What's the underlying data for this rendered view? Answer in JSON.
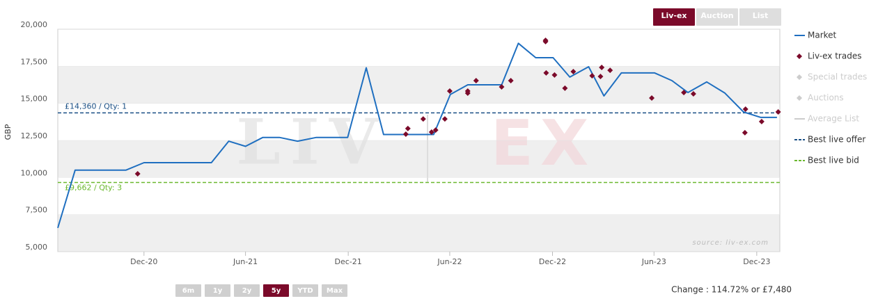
{
  "chart_data": {
    "type": "line",
    "y_label": "GBP",
    "xlim": [
      2020.495,
      2024.03
    ],
    "xticks": [
      {
        "value": 2020.917,
        "label": "Dec-20"
      },
      {
        "value": 2021.414,
        "label": "Jun-21"
      },
      {
        "value": 2021.917,
        "label": "Dec-21"
      },
      {
        "value": 2022.414,
        "label": "Jun-22"
      },
      {
        "value": 2022.917,
        "label": "Dec-22"
      },
      {
        "value": 2023.414,
        "label": "Jun-23"
      },
      {
        "value": 2023.917,
        "label": "Dec-23"
      }
    ],
    "ylim": [
      5000,
      20000
    ],
    "yticks": [
      {
        "value": 5000,
        "label": "5,000"
      },
      {
        "value": 7500,
        "label": "7,500"
      },
      {
        "value": 10000,
        "label": "10,000"
      },
      {
        "value": 12500,
        "label": "12,500"
      },
      {
        "value": 15000,
        "label": "15,000"
      },
      {
        "value": 17500,
        "label": "17,500"
      },
      {
        "value": 20000,
        "label": "20,000"
      }
    ],
    "series": [
      {
        "name": "Market",
        "type": "line",
        "color": "#1f6fc0",
        "x": [
          2020.495,
          2020.58,
          2020.829,
          2020.917,
          2021.247,
          2021.332,
          2021.414,
          2021.499,
          2021.58,
          2021.669,
          2021.761,
          2021.914,
          2022.005,
          2022.09,
          2022.335,
          2022.417,
          2022.502,
          2022.668,
          2022.75,
          2022.835,
          2022.92,
          2023.002,
          2023.094,
          2023.169,
          2023.254,
          2023.417,
          2023.502,
          2023.58,
          2023.672,
          2023.761,
          2023.852,
          2023.937,
          2024.016
        ],
        "values": [
          6600,
          10500,
          10500,
          11000,
          11000,
          12450,
          12100,
          12700,
          12700,
          12450,
          12700,
          12700,
          17400,
          12900,
          12900,
          15600,
          16250,
          16250,
          19050,
          18080,
          18080,
          16770,
          17470,
          15500,
          17050,
          17050,
          16530,
          15730,
          16440,
          15690,
          14420,
          14050,
          14050
        ]
      },
      {
        "name": "Liv-ex trades",
        "type": "scatter",
        "color": "#7b0a2a",
        "x": [
          2020.886,
          2022.199,
          2022.209,
          2022.284,
          2022.325,
          2022.345,
          2022.39,
          2022.414,
          2022.502,
          2022.502,
          2022.543,
          2022.668,
          2022.713,
          2022.883,
          2022.883,
          2022.886,
          2022.927,
          2022.978,
          2023.019,
          2023.111,
          2023.152,
          2023.158,
          2023.199,
          2023.403,
          2023.56,
          2023.607,
          2023.862,
          2023.859,
          2023.941,
          2024.022
        ],
        "values": [
          10250,
          12920,
          13300,
          13950,
          13060,
          13200,
          13950,
          15830,
          15830,
          15690,
          16530,
          16110,
          16530,
          19250,
          19160,
          17050,
          16910,
          16020,
          17140,
          16860,
          16810,
          17420,
          17230,
          15360,
          15730,
          15640,
          14610,
          13020,
          13770,
          14420
        ]
      },
      {
        "name": "Special trades",
        "type": "scatter",
        "color": "#cccccc",
        "x": [],
        "values": []
      },
      {
        "name": "Auctions",
        "type": "scatter",
        "color": "#cccccc",
        "x": [],
        "values": []
      },
      {
        "name": "Average List",
        "type": "line",
        "color": "#cccccc",
        "x": [],
        "values": []
      }
    ],
    "reference_lines": [
      {
        "name": "Best live offer",
        "color": "#1a4f85",
        "value": 14360,
        "label": "£14,360 / Qty: 1"
      },
      {
        "name": "Best live bid",
        "color": "#6ab82e",
        "value": 9662,
        "label": "£9,662 / Qty: 3"
      }
    ],
    "source_buttons": [
      {
        "label": "Liv-ex",
        "active": true
      },
      {
        "label": "Auction",
        "active": false
      },
      {
        "label": "List",
        "active": false
      }
    ],
    "range_buttons": [
      {
        "label": "6m",
        "active": false
      },
      {
        "label": "1y",
        "active": false
      },
      {
        "label": "2y",
        "active": false
      },
      {
        "label": "5y",
        "active": true
      },
      {
        "label": "YTD",
        "active": false
      },
      {
        "label": "Max",
        "active": false
      }
    ],
    "watermark": [
      "LIV",
      "EX"
    ],
    "source": "source: liv-ex.com",
    "change": "Change : 114.72% or £7,480"
  }
}
